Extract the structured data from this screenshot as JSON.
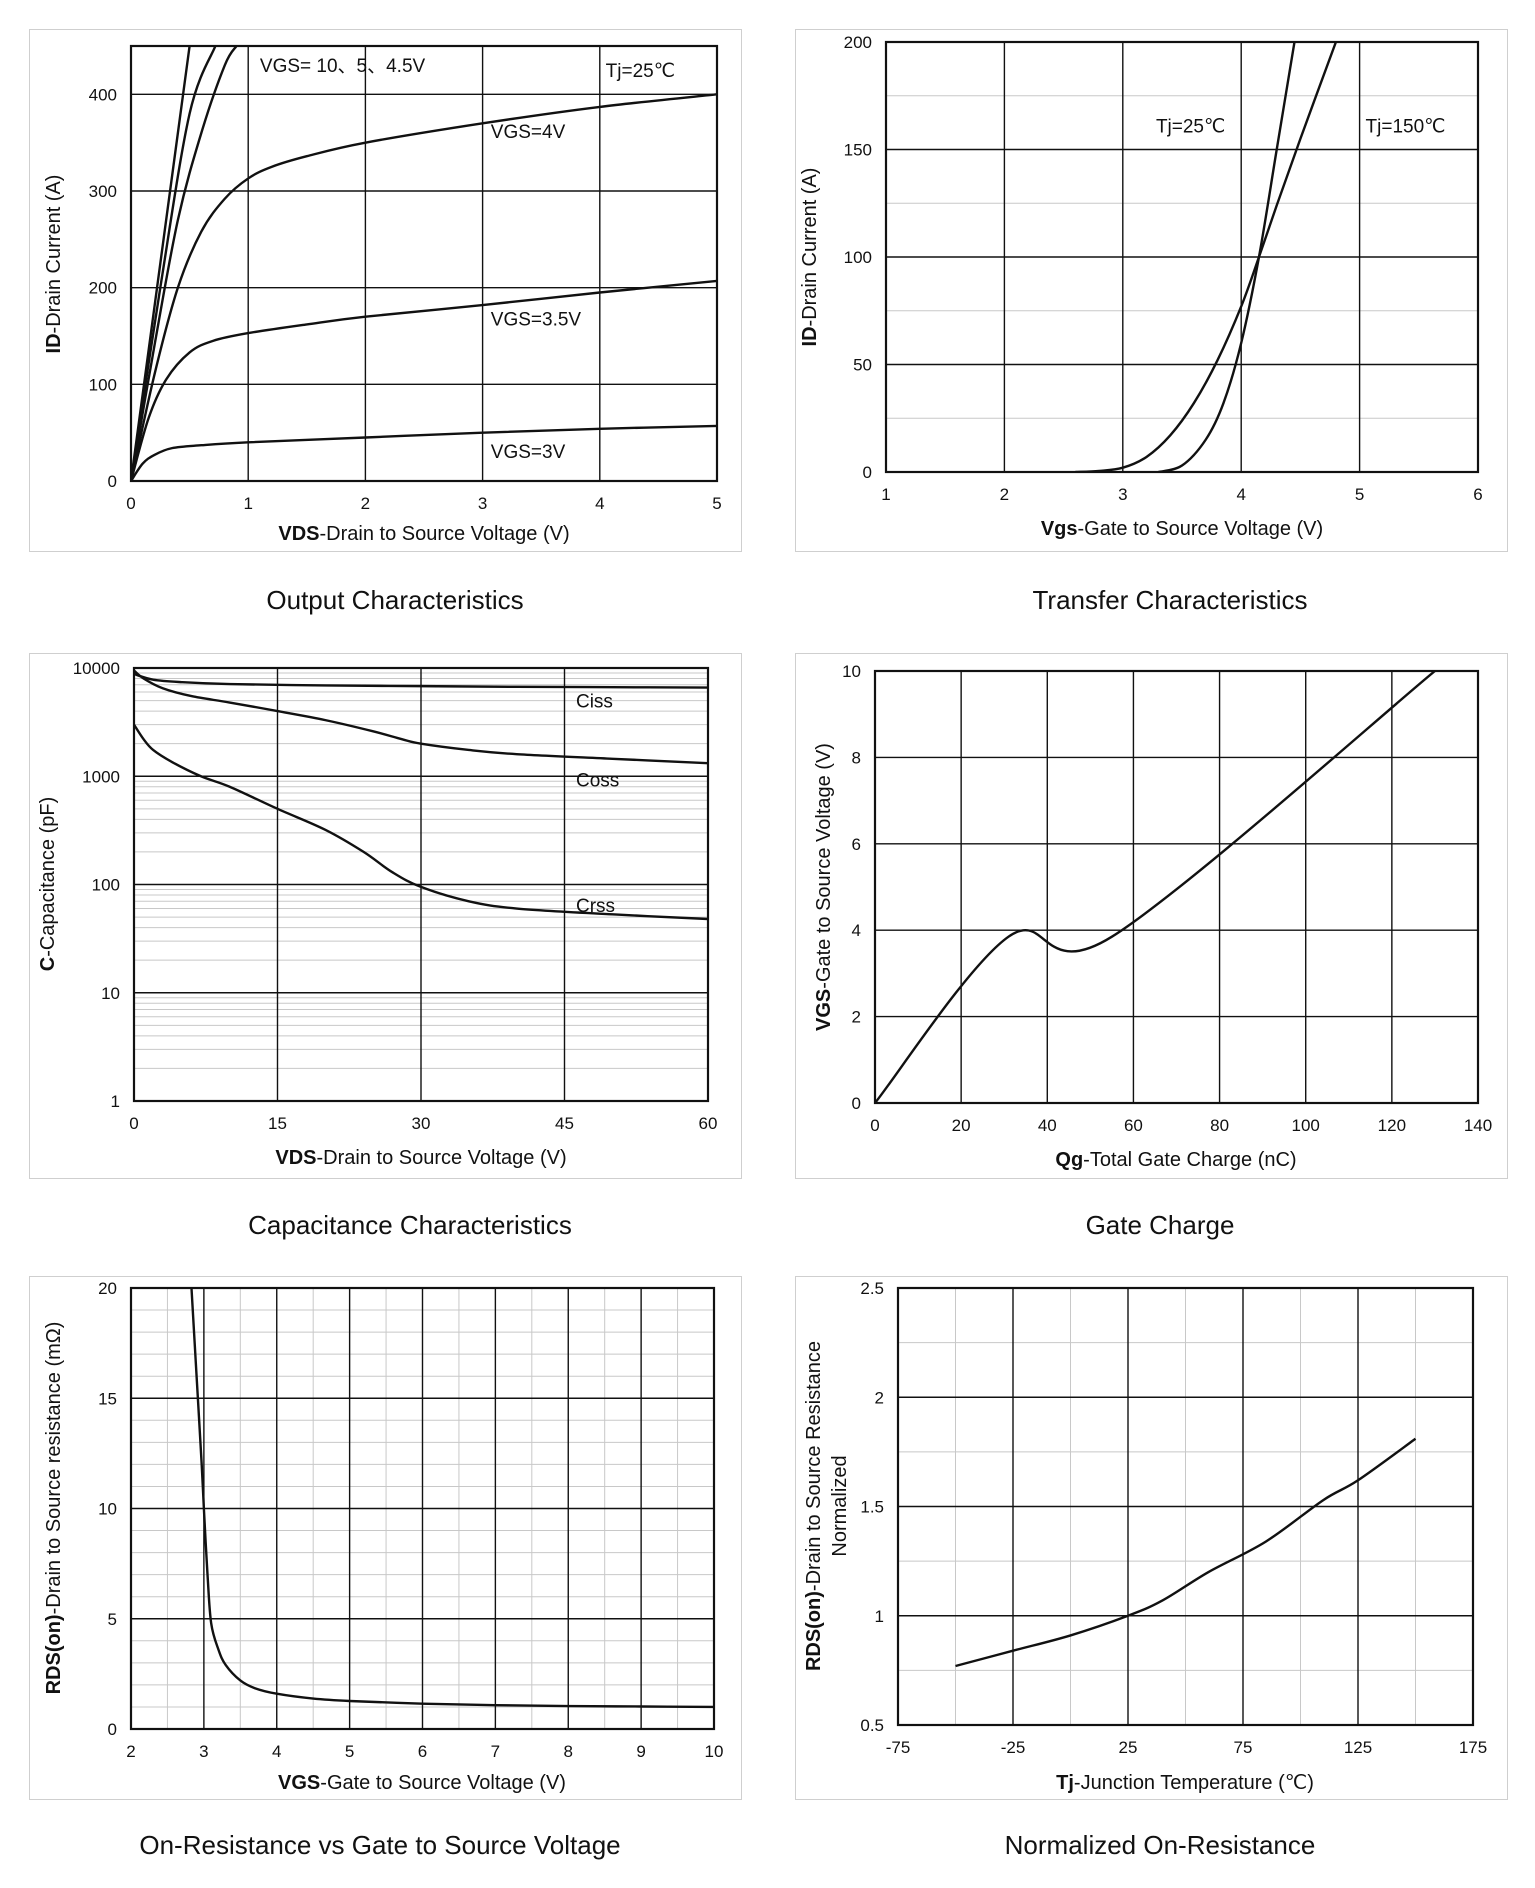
{
  "chart_data": [
    {
      "type": "line",
      "title": "Output Characteristics",
      "xlabel_bold": "VDS",
      "xlabel_rest": "-Drain to Source Voltage (V)",
      "ylabel_bold": "ID",
      "ylabel_rest": "-Drain Current (A)",
      "xlim": [
        0,
        5
      ],
      "ylim": [
        0,
        450
      ],
      "xticks": [
        0,
        1,
        2,
        3,
        4,
        5
      ],
      "yticks": [
        0,
        100,
        200,
        300,
        400
      ],
      "grid": true,
      "series": [
        {
          "name": "VGS=10V",
          "x": [
            0,
            0.5
          ],
          "y": [
            0,
            450
          ]
        },
        {
          "name": "VGS=5V",
          "x": [
            0,
            0.25,
            0.5,
            0.72
          ],
          "y": [
            0,
            200,
            380,
            450
          ]
        },
        {
          "name": "VGS=4.5V",
          "x": [
            0,
            0.2,
            0.4,
            0.6,
            0.8,
            0.9
          ],
          "y": [
            0,
            140,
            270,
            360,
            430,
            450
          ]
        },
        {
          "name": "VGS=4V",
          "x": [
            0,
            0.2,
            0.4,
            0.6,
            0.8,
            1.0,
            1.2,
            1.5,
            2,
            3,
            4,
            5
          ],
          "y": [
            0,
            110,
            200,
            258,
            292,
            313,
            325,
            336,
            350,
            370,
            387,
            400
          ]
        },
        {
          "name": "VGS=3.5V",
          "x": [
            0,
            0.15,
            0.3,
            0.5,
            0.7,
            1.0,
            1.5,
            2,
            3,
            4,
            5
          ],
          "y": [
            0,
            65,
            105,
            133,
            145,
            153,
            162,
            170,
            182,
            195,
            207
          ]
        },
        {
          "name": "VGS=3V",
          "x": [
            0,
            0.1,
            0.2,
            0.35,
            0.6,
            1.0,
            2,
            3,
            4,
            5
          ],
          "y": [
            0,
            18,
            27,
            34,
            37,
            40,
            45,
            50,
            54,
            57
          ]
        }
      ],
      "annotations": [
        {
          "text": "VGS= 10、5、4.5V",
          "x": 1.1,
          "y": 423
        },
        {
          "text": "Tj=25℃",
          "x": 4.05,
          "y": 418
        },
        {
          "text": "VGS=4V",
          "x": 3.07,
          "y": 355
        },
        {
          "text": "VGS=3.5V",
          "x": 3.07,
          "y": 161
        },
        {
          "text": "VGS=3V",
          "x": 3.07,
          "y": 24
        }
      ]
    },
    {
      "type": "line",
      "title": "Transfer Characteristics",
      "xlabel_bold": "Vgs",
      "xlabel_rest": "-Gate to Source Voltage (V)",
      "ylabel_bold": "ID",
      "ylabel_rest": "-Drain Current (A)",
      "xlim": [
        1,
        6
      ],
      "ylim": [
        0,
        200
      ],
      "xticks": [
        1,
        2,
        3,
        4,
        5,
        6
      ],
      "yticks": [
        0,
        50,
        100,
        150,
        200
      ],
      "minor_y": 25,
      "grid": true,
      "series": [
        {
          "name": "Tj=25℃",
          "x": [
            3.3,
            3.5,
            3.7,
            3.85,
            4.0,
            4.15,
            4.3,
            4.45
          ],
          "y": [
            0,
            3,
            15,
            32,
            60,
            100,
            150,
            200
          ]
        },
        {
          "name": "Tj=150℃",
          "x": [
            2.6,
            2.8,
            3.0,
            3.2,
            3.4,
            3.6,
            3.8,
            4.0,
            4.15,
            4.3,
            4.5,
            4.8
          ],
          "y": [
            0,
            0.5,
            2,
            7,
            17,
            32,
            52,
            77,
            100,
            124,
            155,
            200
          ]
        }
      ],
      "annotations": [
        {
          "text": "Tj=25℃",
          "x": 3.28,
          "y": 158
        },
        {
          "text": "Tj=150℃",
          "x": 5.05,
          "y": 158
        }
      ]
    },
    {
      "type": "line",
      "title": "Capacitance Characteristics",
      "xlabel_bold": "VDS",
      "xlabel_rest": "-Drain to Source Voltage (V)",
      "ylabel_bold": "C",
      "ylabel_rest": "-Capacitance (pF)",
      "xlim": [
        0,
        60
      ],
      "ylim": [
        1,
        10000
      ],
      "yscale": "log",
      "xticks": [
        0,
        15,
        30,
        45,
        60
      ],
      "yticks": [
        1,
        10,
        100,
        1000,
        10000
      ],
      "grid": true,
      "series": [
        {
          "name": "Ciss",
          "x": [
            0,
            2,
            5,
            10,
            20,
            30,
            40,
            50,
            60
          ],
          "y": [
            8800,
            7800,
            7400,
            7100,
            6900,
            6800,
            6700,
            6650,
            6600
          ]
        },
        {
          "name": "Coss",
          "x": [
            0,
            1,
            3,
            6,
            10,
            15,
            20,
            25,
            28,
            30,
            35,
            40,
            50,
            60
          ],
          "y": [
            9500,
            8000,
            6500,
            5500,
            4800,
            4000,
            3300,
            2600,
            2200,
            2000,
            1750,
            1600,
            1450,
            1320
          ]
        },
        {
          "name": "Crss",
          "x": [
            0,
            1,
            2,
            4,
            7,
            10,
            15,
            20,
            24,
            27,
            30,
            35,
            40,
            50,
            60
          ],
          "y": [
            3000,
            2200,
            1750,
            1350,
            1000,
            800,
            500,
            320,
            200,
            130,
            95,
            70,
            60,
            53,
            48
          ]
        }
      ],
      "annotations": [
        {
          "text": "Ciss",
          "x": 46.2,
          "y": 4300
        },
        {
          "text": "Coss",
          "x": 46.2,
          "y": 800
        },
        {
          "text": "Crss",
          "x": 46.2,
          "y": 56
        }
      ]
    },
    {
      "type": "line",
      "title": "Gate Charge",
      "xlabel_bold": "Qg",
      "xlabel_rest": "-Total Gate Charge (nC)",
      "ylabel_bold": "VGS",
      "ylabel_rest": "-Gate to Source Voltage (V)",
      "xlim": [
        0,
        140
      ],
      "ylim": [
        0,
        10
      ],
      "xticks": [
        0,
        20,
        40,
        60,
        80,
        100,
        120,
        140
      ],
      "yticks": [
        0,
        2,
        4,
        6,
        8,
        10
      ],
      "grid": true,
      "series": [
        {
          "name": "VGS",
          "x": [
            0,
            31,
            55,
            130
          ],
          "y": [
            0,
            3.85,
            3.85,
            10
          ]
        }
      ]
    },
    {
      "type": "line",
      "title": "On-Resistance vs Gate to Source Voltage",
      "xlabel_bold": "VGS",
      "xlabel_rest": "-Gate to Source Voltage (V)",
      "ylabel_bold": "RDS(on)",
      "ylabel_rest": "-Drain to Source resistance (mΩ)",
      "xlim": [
        2,
        10
      ],
      "ylim": [
        0,
        20
      ],
      "xticks": [
        2,
        3,
        4,
        5,
        6,
        7,
        8,
        9,
        10
      ],
      "yticks": [
        0,
        5,
        10,
        15,
        20
      ],
      "minor_x": 0.5,
      "minor_y": 1,
      "grid": true,
      "series": [
        {
          "name": "RDS(on)",
          "x": [
            2.83,
            2.9,
            2.97,
            3.0,
            3.05,
            3.1,
            3.2,
            3.3,
            3.5,
            3.7,
            4.0,
            4.5,
            5.0,
            6.0,
            7.0,
            8.0,
            9.0,
            10.0
          ],
          "y": [
            20,
            16,
            12,
            10,
            7,
            4.8,
            3.6,
            2.9,
            2.2,
            1.85,
            1.6,
            1.38,
            1.27,
            1.15,
            1.08,
            1.04,
            1.02,
            1.0
          ]
        }
      ]
    },
    {
      "type": "line",
      "title": "Normalized On-Resistance",
      "xlabel_bold": "Tj",
      "xlabel_rest": "-Junction Temperature (℃)",
      "ylabel_bold": "RDS(on)",
      "ylabel_rest": "-Drain to Source Resistance",
      "ylabel2": "Normalized",
      "xlim": [
        -75,
        175
      ],
      "ylim": [
        0.5,
        2.5
      ],
      "xticks": [
        -75,
        -25,
        25,
        75,
        125,
        175
      ],
      "yticks": [
        0.5,
        1,
        1.5,
        2,
        2.5
      ],
      "minor_x": 25,
      "minor_y": 0.25,
      "grid": true,
      "series": [
        {
          "name": "RDS(on) normalized",
          "x": [
            -50,
            -25,
            0,
            25,
            40,
            60,
            85,
            110,
            125,
            150
          ],
          "y": [
            0.77,
            0.84,
            0.91,
            1.0,
            1.07,
            1.2,
            1.34,
            1.53,
            1.62,
            1.81
          ]
        }
      ]
    }
  ]
}
